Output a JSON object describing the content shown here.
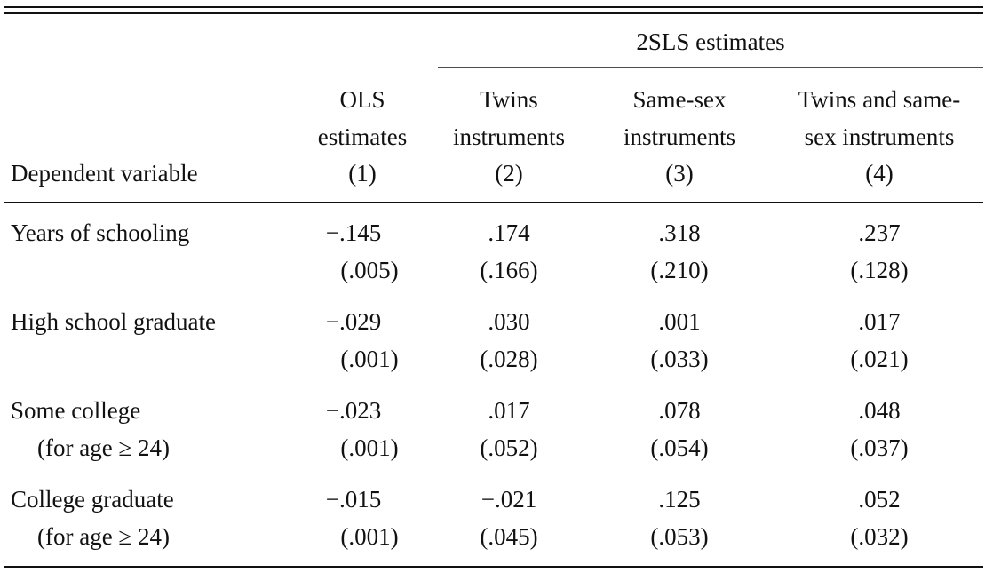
{
  "table": {
    "spanner": "2SLS estimates",
    "columns": [
      [
        "Dependent variable"
      ],
      [
        "OLS",
        "estimates",
        "(1)"
      ],
      [
        "Twins",
        "instruments",
        "(2)"
      ],
      [
        "Same-sex",
        "instruments",
        "(3)"
      ],
      [
        "Twins and same-",
        "sex instruments",
        "(4)"
      ]
    ],
    "rows": [
      {
        "label": [
          "Years of schooling"
        ],
        "estimates": [
          "−.145",
          ".174",
          ".318",
          ".237"
        ],
        "se": [
          "(.005)",
          "(.166)",
          "(.210)",
          "(.128)"
        ]
      },
      {
        "label": [
          "High school graduate"
        ],
        "estimates": [
          "−.029",
          ".030",
          ".001",
          ".017"
        ],
        "se": [
          "(.001)",
          "(.028)",
          "(.033)",
          "(.021)"
        ]
      },
      {
        "label": [
          "Some college",
          "(for age ≥ 24)"
        ],
        "estimates": [
          "−.023",
          ".017",
          ".078",
          ".048"
        ],
        "se": [
          "(.001)",
          "(.052)",
          "(.054)",
          "(.037)"
        ]
      },
      {
        "label": [
          "College graduate",
          "(for age ≥ 24)"
        ],
        "estimates": [
          "−.015",
          "−.021",
          ".125",
          ".052"
        ],
        "se": [
          "(.001)",
          "(.045)",
          "(.053)",
          "(.032)"
        ]
      }
    ]
  }
}
